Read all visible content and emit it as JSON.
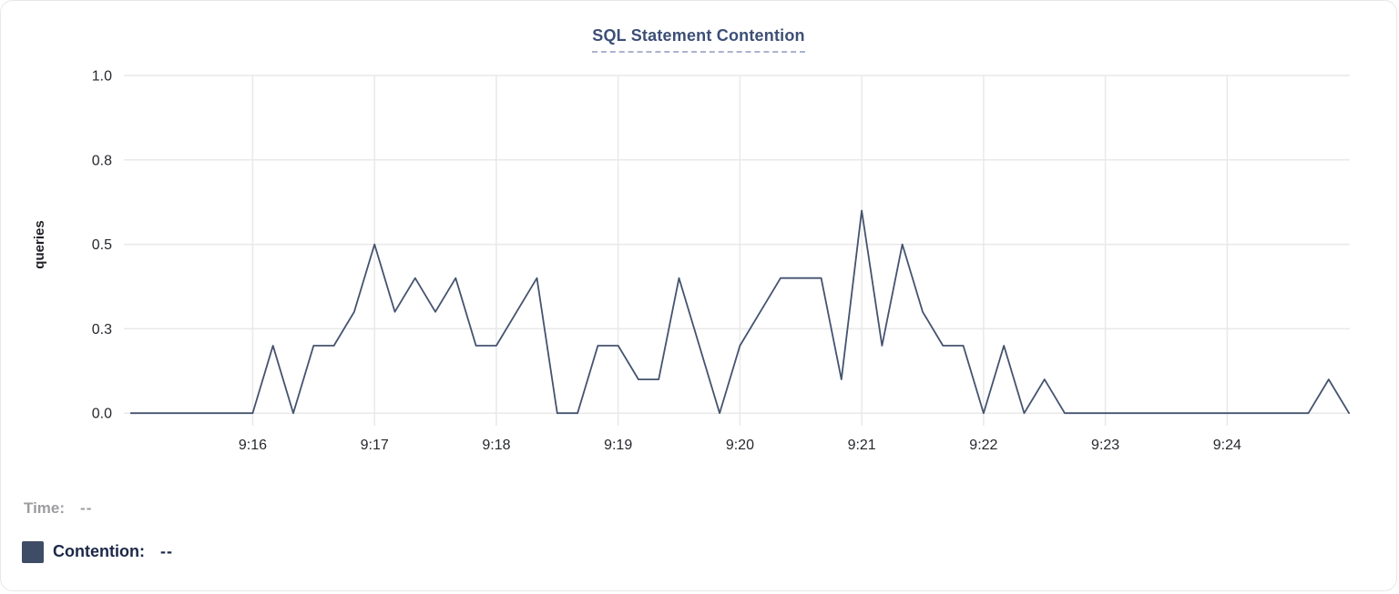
{
  "title": "SQL Statement Contention",
  "legend": {
    "time_label": "Time:",
    "time_value": "--",
    "series_label": "Contention:",
    "series_value": "--"
  },
  "colors": {
    "line": "#45536f",
    "swatch": "#3e4c66",
    "title": "#3d4f76",
    "title_underline": "#aab3cf",
    "grid": "#e9e9ea",
    "tick_text": "#26282d",
    "time_text": "#9c9ca1",
    "contention_text": "#1c2847"
  },
  "chart_data": {
    "type": "line",
    "title": "SQL Statement Contention",
    "xlabel": "",
    "ylabel": "queries",
    "ylim": [
      0,
      1.0
    ],
    "grid": true,
    "legend_position": "bottom-left",
    "sample_interval_seconds": 10,
    "y_tick_values": [
      0,
      0.25,
      0.5,
      0.75,
      1.0
    ],
    "y_tick_labels": [
      "0.0",
      "0.3",
      "0.5",
      "0.8",
      "1.0"
    ],
    "x_tick_labels": [
      "9:16",
      "9:17",
      "9:18",
      "9:19",
      "9:20",
      "9:21",
      "9:22",
      "9:23",
      "9:24"
    ],
    "x": [
      "9:15:00",
      "9:15:10",
      "9:15:20",
      "9:15:30",
      "9:15:40",
      "9:15:50",
      "9:16:00",
      "9:16:10",
      "9:16:20",
      "9:16:30",
      "9:16:40",
      "9:16:50",
      "9:17:00",
      "9:17:10",
      "9:17:20",
      "9:17:30",
      "9:17:40",
      "9:17:50",
      "9:18:00",
      "9:18:10",
      "9:18:20",
      "9:18:30",
      "9:18:40",
      "9:18:50",
      "9:19:00",
      "9:19:10",
      "9:19:20",
      "9:19:30",
      "9:19:40",
      "9:19:50",
      "9:20:00",
      "9:20:10",
      "9:20:20",
      "9:20:30",
      "9:20:40",
      "9:20:50",
      "9:21:00",
      "9:21:10",
      "9:21:20",
      "9:21:30",
      "9:21:40",
      "9:21:50",
      "9:22:00",
      "9:22:10",
      "9:22:20",
      "9:22:30",
      "9:22:40",
      "9:22:50",
      "9:23:00",
      "9:23:10",
      "9:23:20",
      "9:23:30",
      "9:23:40",
      "9:23:50",
      "9:24:00",
      "9:24:10",
      "9:24:20",
      "9:24:30",
      "9:24:40",
      "9:24:50",
      "9:25:00"
    ],
    "series": [
      {
        "name": "Contention",
        "values": [
          0,
          0,
          0,
          0,
          0,
          0,
          0,
          0.2,
          0,
          0.2,
          0.2,
          0.3,
          0.5,
          0.3,
          0.4,
          0.3,
          0.4,
          0.2,
          0.2,
          0.3,
          0.4,
          0,
          0,
          0.2,
          0.2,
          0.1,
          0.1,
          0.4,
          0.2,
          0,
          0.2,
          0.3,
          0.4,
          0.4,
          0.4,
          0.1,
          0.6,
          0.2,
          0.5,
          0.3,
          0.2,
          0.2,
          0,
          0.2,
          0,
          0.1,
          0,
          0,
          0,
          0,
          0,
          0,
          0,
          0,
          0,
          0,
          0,
          0,
          0,
          0.1,
          0
        ]
      }
    ]
  }
}
